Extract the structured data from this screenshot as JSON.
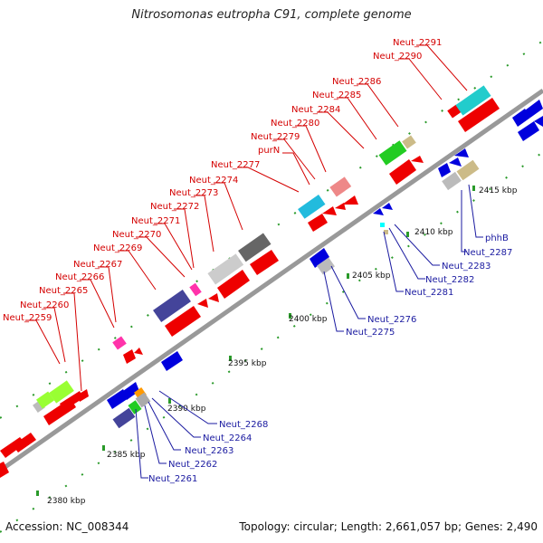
{
  "title": "Nitrosomonas eutropha C91, complete genome",
  "footer": {
    "accession": "Accession: NC_008344",
    "summary": "Topology: circular; Length: 2,661,057 bp; Genes: 2,490"
  },
  "colors": {
    "forward_label": "#d40000",
    "reverse_label": "#1a1aa0",
    "backbone": "#999999"
  },
  "ticks": [
    "2380 kbp",
    "2385 kbp",
    "2390 kbp",
    "2395 kbp",
    "2400 kbp",
    "2405 kbp",
    "2410 kbp",
    "2415 kbp"
  ],
  "forward_labels": [
    "Neut_2259",
    "Neut_2260",
    "Neut_2265",
    "Neut_2266",
    "Neut_2267",
    "Neut_2269",
    "Neut_2270",
    "Neut_2271",
    "Neut_2272",
    "Neut_2273",
    "Neut_2274",
    "Neut_2277",
    "purN",
    "Neut_2279",
    "Neut_2280",
    "Neut_2284",
    "Neut_2285",
    "Neut_2286",
    "Neut_2290",
    "Neut_2291"
  ],
  "reverse_labels": [
    "Neut_2261",
    "Neut_2262",
    "Neut_2263",
    "Neut_2264",
    "Neut_2268",
    "Neut_2275",
    "Neut_2276",
    "Neut_2281",
    "Neut_2282",
    "Neut_2283",
    "Neut_2287",
    "phhB"
  ]
}
